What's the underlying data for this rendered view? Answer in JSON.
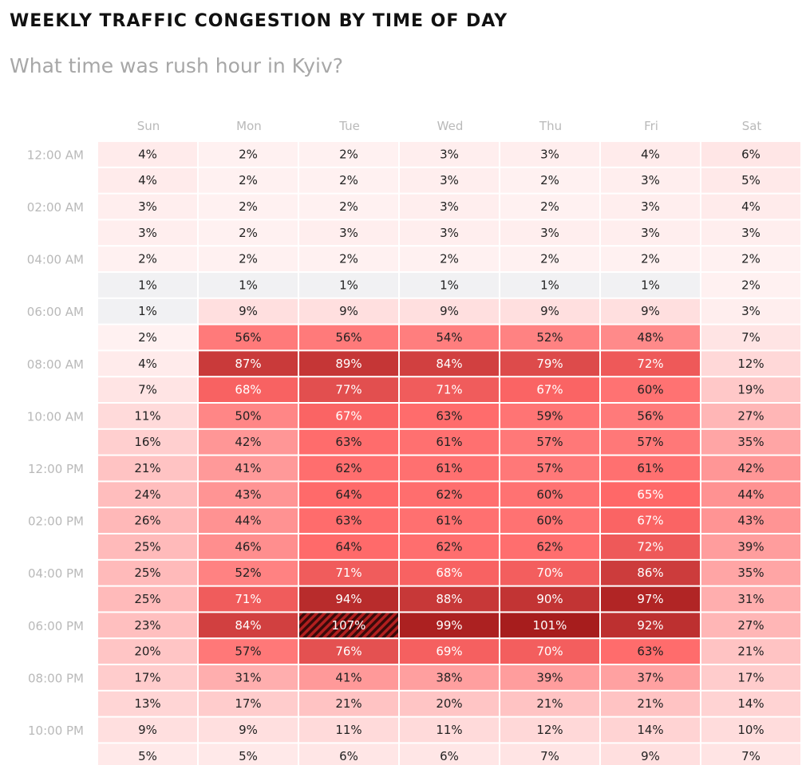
{
  "title": "WEEKLY TRAFFIC CONGESTION BY TIME OF DAY",
  "subtitle": "What time was rush hour in Kyiv?",
  "colors": {
    "lowest": "#f1f1f3",
    "scale_light": "#fff7f7",
    "scale_mid": "#ff6868",
    "scale_dark": "#a51b1b",
    "text_dark": "#222222",
    "text_light": "#ffffff",
    "axis_text": "#b9b9b9",
    "hatch": "#3a0a0a"
  },
  "chart_data": {
    "type": "heatmap",
    "title": "WEEKLY TRAFFIC CONGESTION BY TIME OF DAY",
    "subtitle": "What time was rush hour in Kyiv?",
    "unit": "%",
    "columns": [
      "Sun",
      "Mon",
      "Tue",
      "Wed",
      "Thu",
      "Fri",
      "Sat"
    ],
    "row_labels": [
      "12:00 AM",
      "",
      "02:00 AM",
      "",
      "04:00 AM",
      "",
      "06:00 AM",
      "",
      "08:00 AM",
      "",
      "10:00 AM",
      "",
      "12:00 PM",
      "",
      "02:00 PM",
      "",
      "04:00 PM",
      "",
      "06:00 PM",
      "",
      "08:00 PM",
      "",
      "10:00 PM",
      ""
    ],
    "values": [
      [
        4,
        2,
        2,
        3,
        3,
        4,
        6
      ],
      [
        4,
        2,
        2,
        3,
        2,
        3,
        5
      ],
      [
        3,
        2,
        2,
        3,
        2,
        3,
        4
      ],
      [
        3,
        2,
        3,
        3,
        3,
        3,
        3
      ],
      [
        2,
        2,
        2,
        2,
        2,
        2,
        2
      ],
      [
        1,
        1,
        1,
        1,
        1,
        1,
        2
      ],
      [
        1,
        9,
        9,
        9,
        9,
        9,
        3
      ],
      [
        2,
        56,
        56,
        54,
        52,
        48,
        7
      ],
      [
        4,
        87,
        89,
        84,
        79,
        72,
        12
      ],
      [
        7,
        68,
        77,
        71,
        67,
        60,
        19
      ],
      [
        11,
        50,
        67,
        63,
        59,
        56,
        27
      ],
      [
        16,
        42,
        63,
        61,
        57,
        57,
        35
      ],
      [
        21,
        41,
        62,
        61,
        57,
        61,
        42
      ],
      [
        24,
        43,
        64,
        62,
        60,
        65,
        44
      ],
      [
        26,
        44,
        63,
        61,
        60,
        67,
        43
      ],
      [
        25,
        46,
        64,
        62,
        62,
        72,
        39
      ],
      [
        25,
        52,
        71,
        68,
        70,
        86,
        35
      ],
      [
        25,
        71,
        94,
        88,
        90,
        97,
        31
      ],
      [
        23,
        84,
        107,
        99,
        101,
        92,
        27
      ],
      [
        20,
        57,
        76,
        69,
        70,
        63,
        21
      ],
      [
        17,
        31,
        41,
        38,
        39,
        37,
        17
      ],
      [
        13,
        17,
        21,
        20,
        21,
        21,
        14
      ],
      [
        9,
        9,
        11,
        11,
        12,
        14,
        10
      ],
      [
        5,
        5,
        6,
        6,
        7,
        9,
        7
      ]
    ],
    "highlight_max": {
      "row": 18,
      "col": 2
    }
  }
}
